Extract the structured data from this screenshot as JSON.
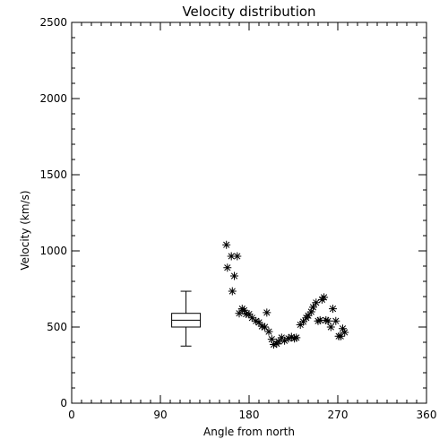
{
  "chart_data": {
    "type": "scatter",
    "title": "Velocity distribution",
    "xlabel": "Angle from north",
    "ylabel": "Velocity (km/s)",
    "xlim": [
      0,
      360
    ],
    "ylim": [
      0,
      2500
    ],
    "xticks": [
      0,
      90,
      180,
      270,
      360
    ],
    "yticks": [
      0,
      500,
      1000,
      1500,
      2000,
      2500
    ],
    "x_minor_step": 10,
    "y_minor_step": 100,
    "grid": false,
    "marker": "asterisk",
    "color": "#000000",
    "boxplot": {
      "x": 116,
      "whisker_low": 375,
      "q1": 500,
      "median": 545,
      "q3": 590,
      "whisker_high": 735
    },
    "series": [
      {
        "points": [
          [
            157,
            1040
          ],
          [
            158,
            890
          ],
          [
            162,
            965
          ],
          [
            163,
            735
          ],
          [
            165,
            835
          ],
          [
            168,
            965
          ],
          [
            170,
            590
          ],
          [
            173,
            620
          ],
          [
            175,
            610
          ],
          [
            177,
            585
          ],
          [
            180,
            585
          ],
          [
            183,
            560
          ],
          [
            187,
            540
          ],
          [
            190,
            530
          ],
          [
            193,
            505
          ],
          [
            196,
            500
          ],
          [
            198,
            595
          ],
          [
            200,
            470
          ],
          [
            203,
            420
          ],
          [
            205,
            385
          ],
          [
            208,
            390
          ],
          [
            210,
            405
          ],
          [
            213,
            430
          ],
          [
            216,
            410
          ],
          [
            220,
            425
          ],
          [
            223,
            435
          ],
          [
            226,
            425
          ],
          [
            228,
            430
          ],
          [
            232,
            515
          ],
          [
            235,
            535
          ],
          [
            238,
            560
          ],
          [
            240,
            575
          ],
          [
            243,
            600
          ],
          [
            245,
            630
          ],
          [
            248,
            660
          ],
          [
            250,
            540
          ],
          [
            252,
            545
          ],
          [
            254,
            680
          ],
          [
            256,
            695
          ],
          [
            258,
            545
          ],
          [
            260,
            540
          ],
          [
            263,
            500
          ],
          [
            265,
            620
          ],
          [
            268,
            540
          ],
          [
            271,
            440
          ],
          [
            273,
            440
          ],
          [
            275,
            490
          ],
          [
            277,
            465
          ]
        ]
      }
    ]
  }
}
